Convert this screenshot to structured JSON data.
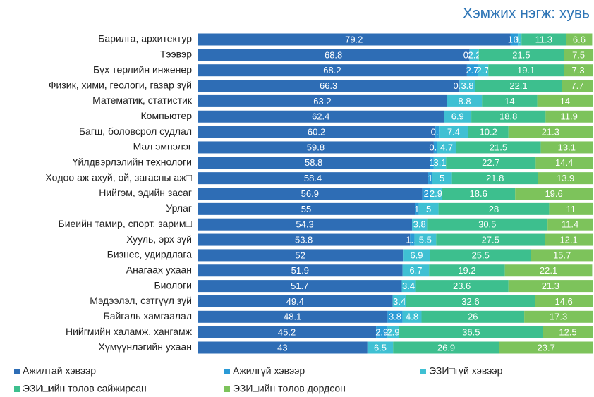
{
  "chart_data": {
    "type": "stacked-bar-horizontal",
    "title": "Хэмжих нэгж: хувь",
    "categories": [
      "Барилга, архитектур",
      "Тээвэр",
      "Бүх төрлийн инженер",
      "Физик, хими, геологи, газар зүй",
      "Математик, статистик",
      "Компьютер",
      "Багш, боловсрол судлал",
      "Мал эмнэлэг",
      "Үйлдвэрлэлийн технологи",
      "Хөдөө аж ахуй, ой, загасны аж□",
      "Нийгэм, эдийн засаг",
      "Урлаг",
      "Биеийн тамир, спорт, зарим□",
      "Хууль, эрх зүй",
      "Бизнес, удирдлага",
      "Анагаах ухаан",
      "Биологи",
      "Мэдээлэл, сэтгүүл зүй",
      "Байгаль хамгаалал",
      "Нийгмийн халамж, хангамж",
      "Хүмүүнлэгийн ухаан"
    ],
    "series": [
      {
        "name": "Ажилтай хэвээр",
        "color": "#2e6db5",
        "values": [
          79.2,
          68.8,
          68.2,
          66.3,
          63.2,
          62.4,
          60.2,
          59.8,
          58.8,
          58.4,
          56.9,
          55.0,
          54.3,
          53.8,
          52.0,
          51.9,
          51.7,
          49.4,
          48.1,
          45.2,
          43.0
        ]
      },
      {
        "name": "Ажилгүй хэвээр",
        "color": "#2a9ad6",
        "values": [
          1.9,
          0.2,
          2.7,
          0.1,
          null,
          null,
          0.9,
          0.9,
          1.0,
          1.0,
          2.0,
          1.0,
          null,
          1.1,
          null,
          null,
          null,
          null,
          3.8,
          2.9,
          null
        ]
      },
      {
        "name": "ЭЗИ□гүй хэвээр",
        "color": "#3fc0d3",
        "values": [
          0.9,
          2.2,
          2.7,
          3.8,
          8.8,
          6.9,
          7.4,
          4.7,
          3.1,
          5.0,
          2.9,
          5.0,
          3.8,
          5.5,
          6.9,
          6.7,
          3.4,
          3.4,
          4.8,
          2.9,
          6.5
        ]
      },
      {
        "name": "ЭЗИ□ийн төлөв сайжирсан",
        "color": "#3dbf8e",
        "values": [
          11.3,
          21.5,
          19.1,
          22.1,
          14.0,
          18.8,
          10.2,
          21.5,
          22.7,
          21.8,
          18.6,
          28.0,
          30.5,
          27.5,
          25.5,
          19.2,
          23.6,
          32.6,
          26.0,
          36.5,
          26.9
        ]
      },
      {
        "name": "ЭЗИ□ийн төлөв дордсон",
        "color": "#7dc35b",
        "values": [
          6.6,
          7.5,
          7.3,
          7.7,
          14.0,
          11.9,
          21.3,
          13.1,
          14.4,
          13.9,
          19.6,
          11.0,
          11.4,
          12.1,
          15.7,
          22.1,
          21.3,
          14.6,
          17.3,
          12.5,
          23.7
        ]
      }
    ],
    "xlim": [
      0,
      100
    ]
  }
}
